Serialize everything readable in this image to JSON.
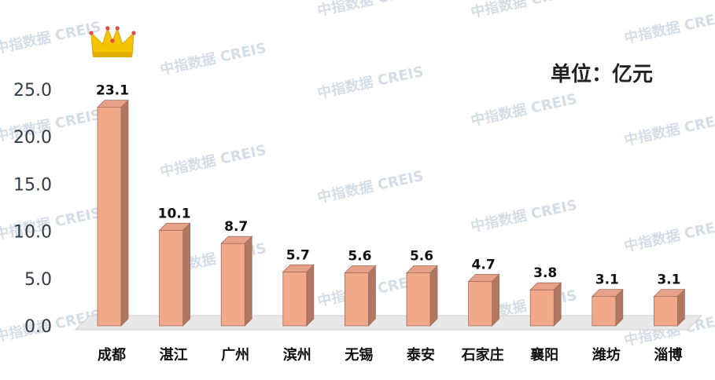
{
  "unit_label": "单位：亿元",
  "watermark": "中指数据 CREIS",
  "colors": {
    "bar_front": "#f2a98a",
    "bar_side": "#b07762",
    "bar_top": "#e6a188",
    "bar_edge": "#a0705e",
    "floor": "#e8e8e8",
    "axis_text": "#333b45",
    "label_text": "#111111",
    "watermark": "#d4dde6",
    "crown": "#f5c400"
  },
  "chart_data": {
    "type": "bar",
    "title": "",
    "xlabel": "",
    "ylabel": "",
    "ylim": [
      0,
      25
    ],
    "yticks": [
      "0.0",
      "5.0",
      "10.0",
      "15.0",
      "20.0",
      "25.0"
    ],
    "ytick_values": [
      0,
      5,
      10,
      15,
      20,
      25
    ],
    "categories": [
      "成都",
      "湛江",
      "广州",
      "滨州",
      "无锡",
      "泰安",
      "石家庄",
      "襄阳",
      "潍坊",
      "淄博"
    ],
    "values": [
      23.1,
      10.1,
      8.7,
      5.7,
      5.6,
      5.6,
      4.7,
      3.8,
      3.1,
      3.1
    ],
    "data_labels": [
      "23.1",
      "10.1",
      "8.7",
      "5.7",
      "5.6",
      "5.6",
      "4.7",
      "3.8",
      "3.1",
      "3.1"
    ],
    "highlight": {
      "index": 0,
      "icon": "crown-icon"
    },
    "grid": false,
    "legend": "none"
  }
}
